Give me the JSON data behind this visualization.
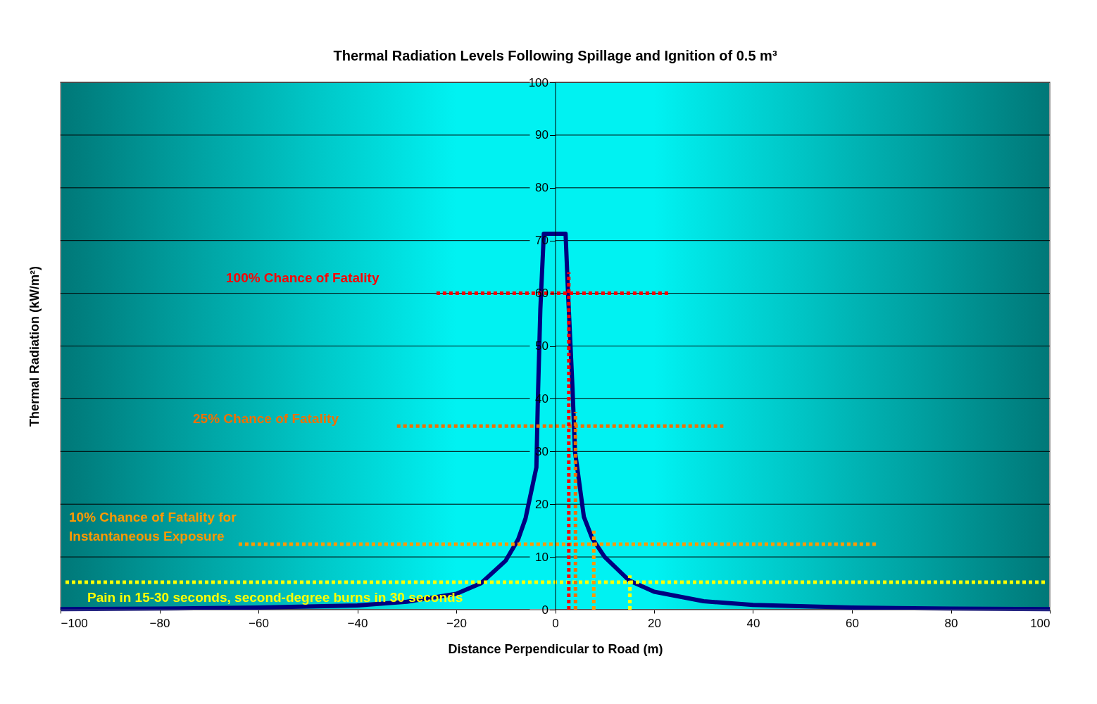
{
  "chart_data": {
    "type": "line",
    "title": "Thermal Radiation Levels Following Spillage and Ignition of 0.5 m³",
    "xlabel": "Distance Perpendicular to Road (m)",
    "ylabel": "Thermal Radiation (kW/m²)",
    "xlim": [
      -100,
      100
    ],
    "xticks": [
      -100,
      -80,
      -60,
      -40,
      -20,
      0,
      20,
      40,
      60,
      80,
      100
    ],
    "ylim": [
      0,
      100
    ],
    "yticks": [
      0,
      10,
      20,
      30,
      40,
      50,
      60,
      70,
      80,
      90,
      100
    ],
    "grid": "y",
    "series": [
      {
        "color": "#000080",
        "line_style": "solid",
        "x": [
          -100,
          -80,
          -60,
          -40,
          -30,
          -20,
          -15,
          -10,
          -7.5,
          -6,
          -3.8,
          -3.5,
          -3.0,
          -2.3,
          2.1,
          2.6,
          3.5,
          4.0,
          4.3,
          5.8,
          7.5,
          10,
          15,
          20,
          30,
          40,
          60,
          80,
          100
        ],
        "values": [
          0.1,
          0.2,
          0.4,
          0.8,
          1.5,
          3,
          5,
          9.3,
          13.3,
          17.3,
          27,
          40,
          57,
          71.3,
          71.3,
          60,
          42,
          30,
          28,
          17.6,
          13.5,
          10,
          5.5,
          3.4,
          1.6,
          0.9,
          0.4,
          0.2,
          0.1
        ]
      },
      {
        "color": "#ff0000",
        "line_style": "dotted",
        "x": [
          -24,
          23
        ],
        "values": [
          60,
          60
        ]
      },
      {
        "color": "#f07000",
        "line_style": "dotted",
        "x": [
          -32,
          34
        ],
        "values": [
          34.8,
          34.8
        ]
      },
      {
        "color": "#ff9900",
        "line_style": "dotted",
        "x": [
          -64,
          65
        ],
        "values": [
          12.4,
          12.4
        ]
      },
      {
        "color": "#ffff00",
        "line_style": "dotted",
        "x": [
          -99,
          99
        ],
        "values": [
          5.2,
          5.2
        ]
      },
      {
        "color": "#ff0000",
        "line_style": "dotted",
        "x": [
          2.75,
          2.75
        ],
        "values": [
          0,
          64
        ]
      },
      {
        "color": "#f07000",
        "line_style": "dotted",
        "x": [
          4.1,
          4.1
        ],
        "values": [
          0,
          37.5
        ]
      },
      {
        "color": "#ff9900",
        "line_style": "dotted",
        "x": [
          7.8,
          7.8
        ],
        "values": [
          0,
          15
        ]
      },
      {
        "color": "#ffff00",
        "line_style": "dotted",
        "x": [
          15.1,
          15.1
        ],
        "values": [
          0,
          6.5
        ]
      }
    ],
    "annotations": [
      "100% Chance of Fatality",
      "25% Chance of Fatality",
      "10% Chance of Fatality for\nInstantaneous Exposure",
      "Pain in 15-30 seconds, second-degree burns in 30 seconds"
    ]
  }
}
